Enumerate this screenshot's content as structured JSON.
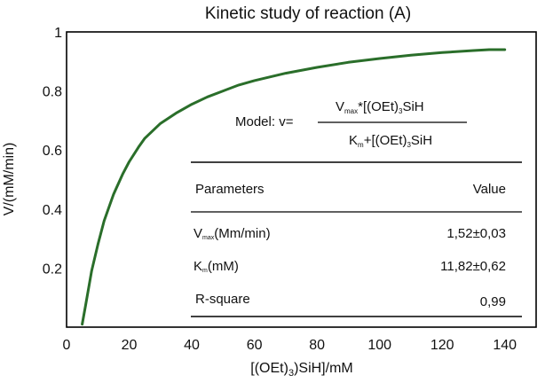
{
  "chart_data": {
    "type": "line",
    "title": "Kinetic study of reaction (A)",
    "xlabel": "[(OEt)3SiH]/mM",
    "ylabel": "V/(mM/min)",
    "xlim": [
      0,
      150
    ],
    "ylim": [
      0,
      1
    ],
    "x_ticks": [
      "0",
      "20",
      "40",
      "60",
      "80",
      "100",
      "120",
      "140"
    ],
    "y_ticks": [
      "0.2",
      "0.4",
      "0.6",
      "0.8",
      "1"
    ],
    "grid": false,
    "line_color": "#2a6e2a",
    "series": [
      {
        "x": [
          5,
          6,
          7,
          8,
          10,
          12,
          15,
          18,
          20,
          23,
          25,
          28,
          30,
          35,
          40,
          45,
          50,
          55,
          60,
          70,
          80,
          90,
          100,
          110,
          120,
          130,
          135,
          140
        ],
        "y": [
          0.01,
          0.07,
          0.13,
          0.19,
          0.28,
          0.36,
          0.45,
          0.52,
          0.56,
          0.61,
          0.64,
          0.67,
          0.69,
          0.725,
          0.755,
          0.78,
          0.8,
          0.82,
          0.835,
          0.86,
          0.88,
          0.897,
          0.91,
          0.921,
          0.93,
          0.937,
          0.94,
          0.94
        ]
      }
    ],
    "annotation": {
      "model_prefix": "Model: v=",
      "numerator": "Vmax*[(OEt)3SiH",
      "denominator": "Km+[(OEt)3SiH",
      "table": {
        "headers": [
          "Parameters",
          "Value"
        ],
        "rows": [
          [
            "Vmax(Mm/min)",
            "1,52±0,03"
          ],
          [
            "Km(mM)",
            "11,82±0,62"
          ],
          [
            "R-square",
            "0,99"
          ]
        ]
      }
    }
  }
}
